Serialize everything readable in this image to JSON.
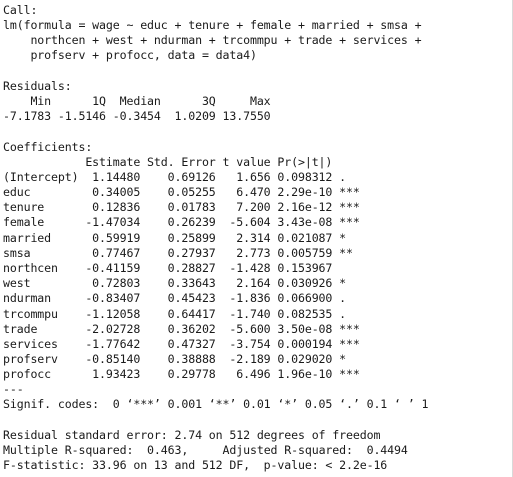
{
  "console": {
    "lines": [
      "Call:",
      "lm(formula = wage ~ educ + tenure + female + married + smsa +",
      "    northcen + west + ndurman + trcommpu + trade + services +",
      "    profserv + profocc, data = data4)",
      "",
      "Residuals:",
      "    Min      1Q  Median      3Q     Max",
      "-7.1783 -1.5146 -0.3454  1.0209 13.7550",
      "",
      "Coefficients:",
      "            Estimate Std. Error t value Pr(>|t|)",
      "(Intercept)  1.14480    0.69126   1.656 0.098312 .",
      "educ         0.34005    0.05255   6.470 2.29e-10 ***",
      "tenure       0.12836    0.01783   7.200 2.16e-12 ***",
      "female      -1.47034    0.26239  -5.604 3.43e-08 ***",
      "married      0.59919    0.25899   2.314 0.021087 *",
      "smsa         0.77467    0.27937   2.773 0.005759 **",
      "northcen    -0.41159    0.28827  -1.428 0.153967",
      "west         0.72803    0.33643   2.164 0.030926 *",
      "ndurman     -0.83407    0.45423  -1.836 0.066900 .",
      "trcommpu    -1.12058    0.64417  -1.740 0.082535 .",
      "trade       -2.02728    0.36202  -5.600 3.50e-08 ***",
      "services    -1.77642    0.47327  -3.754 0.000194 ***",
      "profserv    -0.85140    0.38888  -2.189 0.029020 *",
      "profocc      1.93423    0.29778   6.496 1.96e-10 ***",
      "---",
      "Signif. codes:  0 ‘***’ 0.001 ‘**’ 0.01 ‘*’ 0.05 ‘.’ 0.1 ‘ ’ 1",
      "",
      "Residual standard error: 2.74 on 512 degrees of freedom",
      "Multiple R-squared:  0.463,\tAdjusted R-squared:  0.4494",
      "F-statistic: 33.96 on 13 and 512 DF,  p-value: < 2.2e-16"
    ]
  }
}
